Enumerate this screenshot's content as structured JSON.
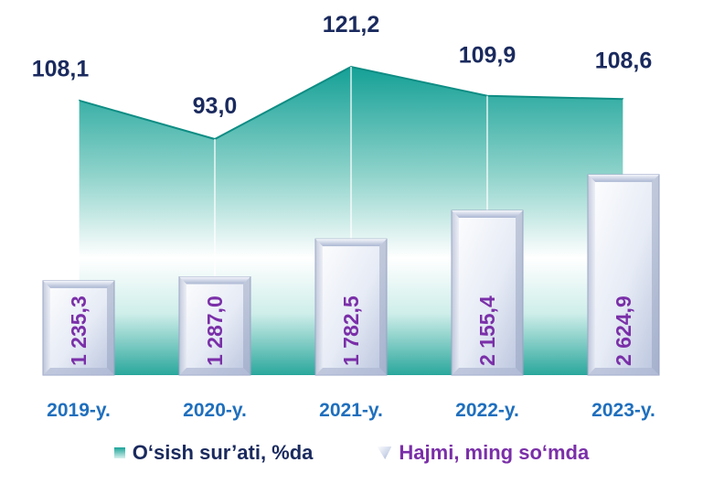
{
  "chart_data": {
    "type": "bar",
    "categories": [
      "2019-y.",
      "2020-y.",
      "2021-y.",
      "2022-y.",
      "2023-y."
    ],
    "series": [
      {
        "name": "O‘sish sur’ati, %da",
        "kind": "area",
        "values": [
          108.1,
          93.0,
          121.2,
          109.9,
          108.6
        ],
        "labels": [
          "108,1",
          "93,0",
          "121,2",
          "109,9",
          "108,6"
        ],
        "color": "#1aa398"
      },
      {
        "name": "Hajmi, ming so‘mda",
        "kind": "bar",
        "values": [
          1235.3,
          1287.0,
          1782.5,
          2155.4,
          2624.9
        ],
        "labels": [
          "1 235,3",
          "1 287,0",
          "1 782,5",
          "2 155,4",
          "2 624,9"
        ],
        "color": "#7a2fa8"
      }
    ],
    "legend_position": "bottom",
    "grid": false
  }
}
